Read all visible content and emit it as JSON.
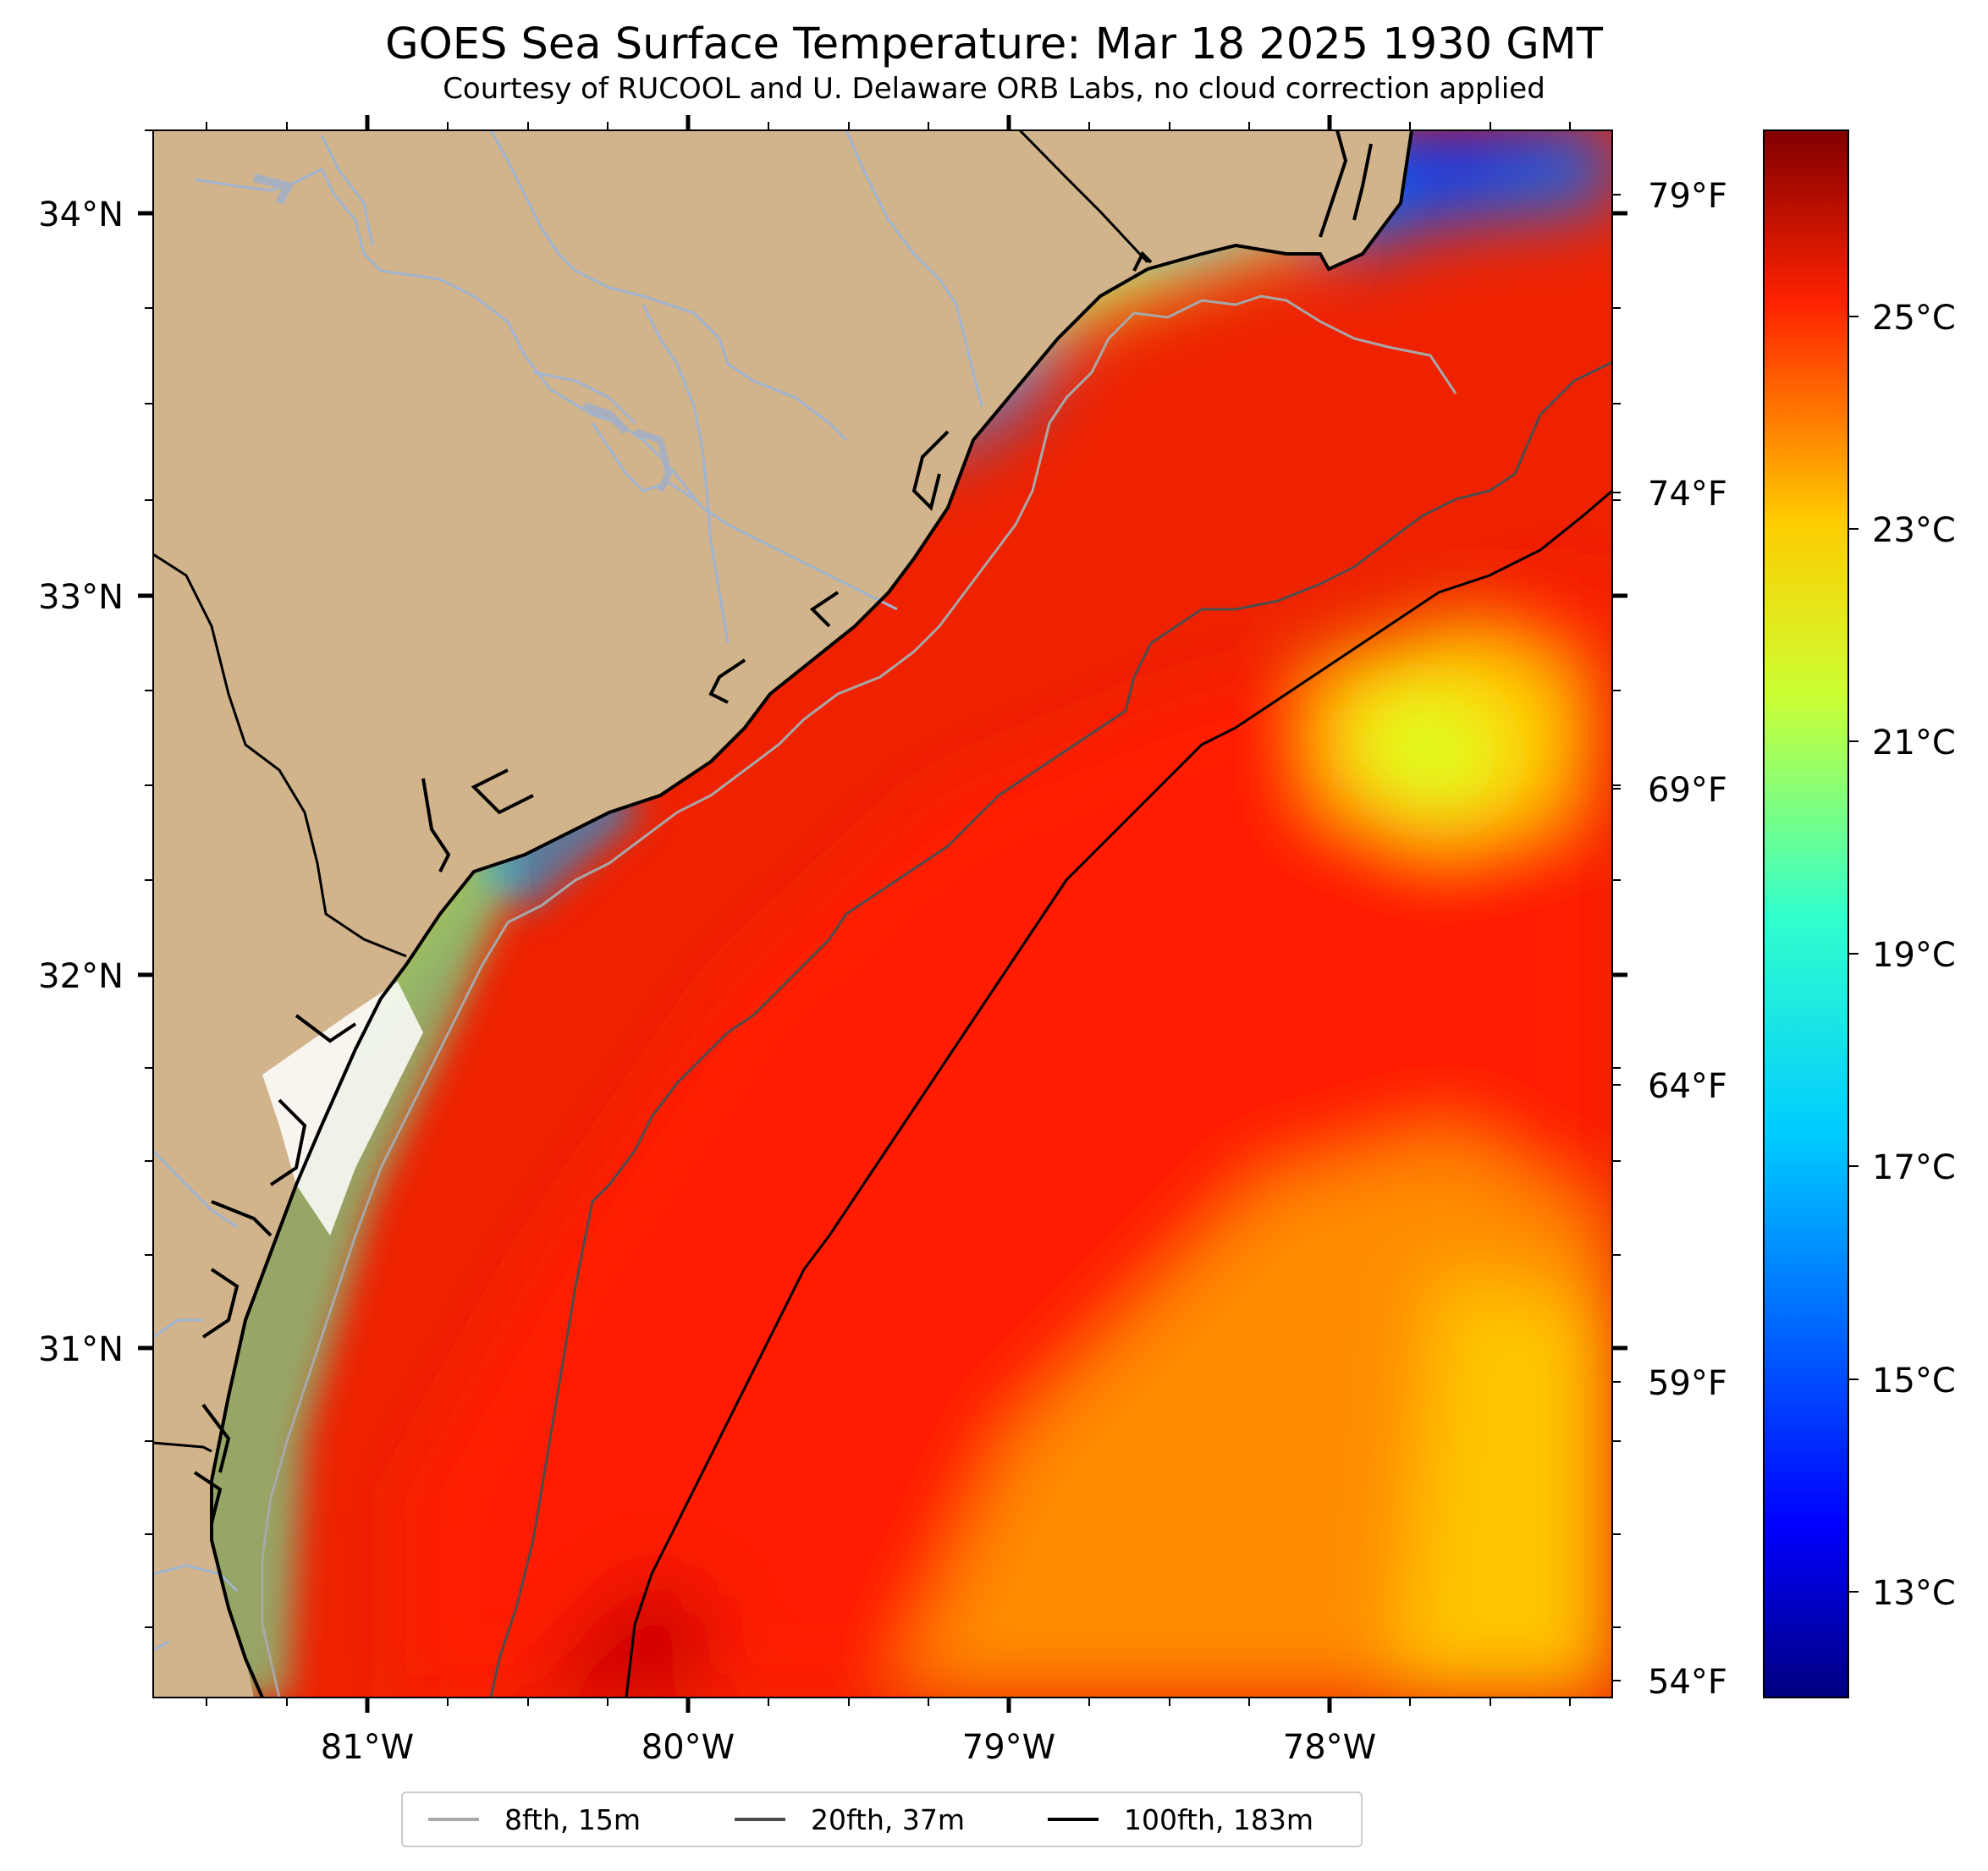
{
  "title": "GOES Sea Surface Temperature: Mar 18 2025 1930 GMT",
  "subtitle": "Courtesy of RUCOOL and U. Delaware ORB Labs, no cloud correction applied",
  "map": {
    "region": "South Carolina / Georgia coast, western Atlantic",
    "lon_range": [
      -81.66,
      -77.12
    ],
    "lat_range": [
      30.09,
      34.22
    ],
    "lon_ticks": [
      "81°W",
      "80°W",
      "79°W",
      "78°W"
    ],
    "lat_ticks": [
      "34°N",
      "33°N",
      "32°N",
      "31°N"
    ],
    "colors": {
      "land": "#d2b48c",
      "rivers": "#a0b4d0",
      "coastline": "#000000"
    }
  },
  "fahrenheit_axis": {
    "ticks": [
      "79°F",
      "74°F",
      "69°F",
      "64°F",
      "59°F",
      "54°F"
    ]
  },
  "colorbar": {
    "colormap": "jet",
    "min_c": 12,
    "max_c": 26.5,
    "ticks": [
      "25°C",
      "23°C",
      "21°C",
      "19°C",
      "17°C",
      "15°C",
      "13°C"
    ]
  },
  "legend": [
    {
      "label": "8fth, 15m",
      "color": "#a8a8a8"
    },
    {
      "label": "20fth, 37m",
      "color": "#4d4d4d"
    },
    {
      "label": "100fth, 183m",
      "color": "#000000"
    }
  ]
}
